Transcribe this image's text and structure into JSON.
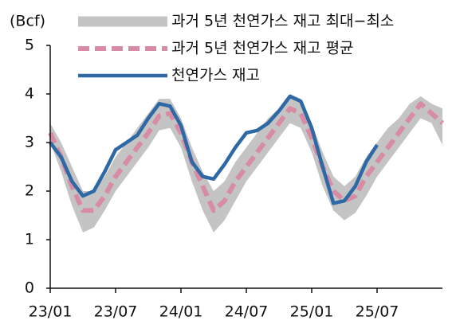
{
  "chart_data": {
    "type": "line",
    "y_label": "(Bcf)",
    "categories": [
      "23/01",
      null,
      null,
      null,
      null,
      null,
      "23/07",
      null,
      null,
      null,
      null,
      null,
      "24/01",
      null,
      null,
      null,
      null,
      null,
      "24/07",
      null,
      null,
      null,
      null,
      null,
      "25/01",
      null,
      null,
      null,
      null,
      null,
      "25/07",
      null,
      null,
      null,
      null,
      null,
      null
    ],
    "series": [
      {
        "name": "과거 5년 천연가스 재고 최대−최소",
        "kind": "band",
        "color": "#c4c4c4",
        "values": [
          3.4,
          3.0,
          2.5,
          2.0,
          2.0,
          2.3,
          2.7,
          3.0,
          3.3,
          3.6,
          3.9,
          3.9,
          3.5,
          2.9,
          2.4,
          2.0,
          2.2,
          2.6,
          2.9,
          3.2,
          3.5,
          3.7,
          4.0,
          3.9,
          3.4,
          2.8,
          2.3,
          2.1,
          2.3,
          2.7,
          3.0,
          3.3,
          3.5,
          3.8,
          3.95,
          3.8,
          3.7
        ],
        "lows": [
          3.0,
          2.4,
          1.7,
          1.15,
          1.25,
          1.6,
          2.0,
          2.3,
          2.6,
          2.9,
          3.25,
          3.3,
          2.9,
          2.2,
          1.6,
          1.15,
          1.4,
          1.8,
          2.2,
          2.5,
          2.8,
          3.1,
          3.4,
          3.3,
          2.8,
          2.1,
          1.6,
          1.4,
          1.55,
          1.9,
          2.3,
          2.6,
          2.9,
          3.2,
          3.5,
          3.4,
          2.95
        ]
      },
      {
        "name": "과거 5년 천연가스 재고 평균",
        "kind": "dashed",
        "color": "#d88ca4",
        "values": [
          3.2,
          2.7,
          2.1,
          1.6,
          1.6,
          1.9,
          2.3,
          2.6,
          2.9,
          3.2,
          3.55,
          3.6,
          3.2,
          2.6,
          2.1,
          1.6,
          1.8,
          2.2,
          2.5,
          2.8,
          3.1,
          3.4,
          3.7,
          3.6,
          3.1,
          2.5,
          2.0,
          1.8,
          1.9,
          2.3,
          2.6,
          2.9,
          3.2,
          3.5,
          3.8,
          3.6,
          3.4
        ]
      },
      {
        "name": "천연가스 재고",
        "kind": "solid",
        "color": "#2e69a6",
        "values": [
          3.0,
          2.7,
          2.2,
          1.9,
          2.0,
          2.4,
          2.85,
          3.0,
          3.15,
          3.5,
          3.8,
          3.75,
          3.35,
          2.6,
          2.3,
          2.25,
          2.55,
          2.9,
          3.2,
          3.25,
          3.4,
          3.65,
          3.95,
          3.85,
          3.3,
          2.5,
          1.75,
          1.8,
          2.1,
          2.6,
          2.95,
          null,
          null,
          null,
          null,
          null,
          null
        ]
      }
    ],
    "ylim": [
      0,
      5
    ],
    "yticks": [
      0,
      1,
      2,
      3,
      4,
      5
    ]
  }
}
